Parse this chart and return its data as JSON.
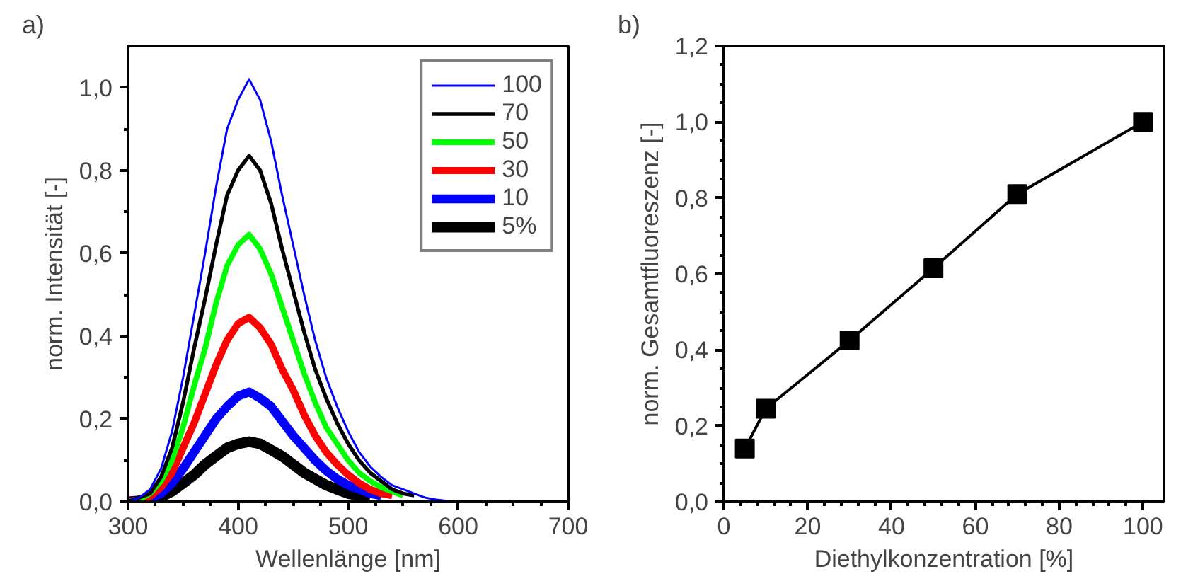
{
  "chart_data": [
    {
      "type": "line",
      "title": "a)",
      "xlabel": "Wellenlänge [nm]",
      "ylabel": "norm. Intensität [-]",
      "x": [
        300,
        310,
        320,
        330,
        340,
        350,
        360,
        370,
        380,
        390,
        400,
        410,
        420,
        430,
        440,
        450,
        460,
        470,
        480,
        490,
        500,
        510,
        520,
        530,
        540,
        550,
        560,
        570,
        580,
        590
      ],
      "series": [
        {
          "name": "100",
          "color": "#0000ff",
          "values": [
            0,
            0.01,
            0.03,
            0.08,
            0.17,
            0.3,
            0.45,
            0.6,
            0.76,
            0.9,
            0.97,
            1.02,
            0.97,
            0.87,
            0.74,
            0.62,
            0.5,
            0.39,
            0.3,
            0.23,
            0.17,
            0.12,
            0.085,
            0.06,
            0.04,
            0.03,
            0.02,
            0.01,
            0.005,
            0.002
          ]
        },
        {
          "name": "70",
          "color": "#000000",
          "values": [
            0,
            0.01,
            0.02,
            0.06,
            0.13,
            0.24,
            0.37,
            0.49,
            0.62,
            0.74,
            0.8,
            0.835,
            0.8,
            0.72,
            0.61,
            0.51,
            0.41,
            0.32,
            0.25,
            0.19,
            0.14,
            0.1,
            0.07,
            0.05,
            0.03,
            0.02,
            0.015,
            null,
            null,
            null
          ]
        },
        {
          "name": "50",
          "color": "#00ff00",
          "values": [
            0,
            0.005,
            0.02,
            0.05,
            0.1,
            0.18,
            0.28,
            0.37,
            0.48,
            0.57,
            0.62,
            0.645,
            0.61,
            0.55,
            0.47,
            0.39,
            0.31,
            0.24,
            0.18,
            0.14,
            0.1,
            0.07,
            0.05,
            0.035,
            0.025,
            0.015,
            null,
            null,
            null,
            null
          ]
        },
        {
          "name": "30",
          "color": "#ff0000",
          "values": [
            0,
            0.004,
            0.013,
            0.035,
            0.07,
            0.13,
            0.19,
            0.26,
            0.33,
            0.39,
            0.43,
            0.445,
            0.42,
            0.38,
            0.32,
            0.27,
            0.21,
            0.16,
            0.12,
            0.09,
            0.065,
            0.045,
            0.03,
            0.02,
            0.015,
            null,
            null,
            null,
            null,
            null
          ]
        },
        {
          "name": "10",
          "color": "#0000ff",
          "values": [
            0,
            0.003,
            0.008,
            0.02,
            0.045,
            0.08,
            0.12,
            0.16,
            0.2,
            0.23,
            0.255,
            0.265,
            0.25,
            0.23,
            0.195,
            0.16,
            0.13,
            0.1,
            0.075,
            0.055,
            0.04,
            0.03,
            0.02,
            0.015,
            null,
            null,
            null,
            null,
            null,
            null
          ]
        },
        {
          "name": "5%",
          "color": "#000000",
          "values": [
            0,
            0.002,
            0.005,
            0.012,
            0.025,
            0.045,
            0.065,
            0.09,
            0.11,
            0.13,
            0.14,
            0.145,
            0.14,
            0.125,
            0.11,
            0.09,
            0.07,
            0.055,
            0.04,
            0.03,
            0.02,
            0.015,
            0.01,
            null,
            null,
            null,
            null,
            null,
            null,
            null
          ]
        }
      ],
      "xlim": [
        300,
        700
      ],
      "xticks": [
        300,
        400,
        500,
        600,
        700
      ],
      "ylim": [
        0,
        1.1
      ],
      "yticks": [
        {
          "value": 0,
          "label": "0,0"
        },
        {
          "value": 0.2,
          "label": "0,2"
        },
        {
          "value": 0.4,
          "label": "0,4"
        },
        {
          "value": 0.6,
          "label": "0,6"
        },
        {
          "value": 0.8,
          "label": "0,8"
        },
        {
          "value": 1.0,
          "label": "1,0"
        }
      ],
      "grid": false,
      "legend": "top right",
      "marker": "none",
      "line_style": "solid"
    },
    {
      "type": "line",
      "title": "b)",
      "xlabel": "Diethylkonzentration [%]",
      "ylabel": "norm. Gesamtfluoreszenz [-]",
      "x": [
        5,
        10,
        30,
        50,
        70,
        100
      ],
      "series": [
        {
          "color": "#000000",
          "values": [
            0.14,
            0.245,
            0.425,
            0.615,
            0.81,
            1.0
          ]
        }
      ],
      "xlim": [
        0,
        105
      ],
      "xticks": [
        0,
        20,
        40,
        60,
        80,
        100
      ],
      "ylim": [
        0,
        1.2
      ],
      "yticks": [
        {
          "value": 0,
          "label": "0,0"
        },
        {
          "value": 0.2,
          "label": "0,2"
        },
        {
          "value": 0.4,
          "label": "0,4"
        },
        {
          "value": 0.6,
          "label": "0,6"
        },
        {
          "value": 0.8,
          "label": "0,8"
        },
        {
          "value": 1.0,
          "label": "1,0"
        },
        {
          "value": 1.2,
          "label": "1,2"
        }
      ],
      "grid": false,
      "legend": false,
      "marker": "square",
      "line_style": "solid"
    }
  ]
}
